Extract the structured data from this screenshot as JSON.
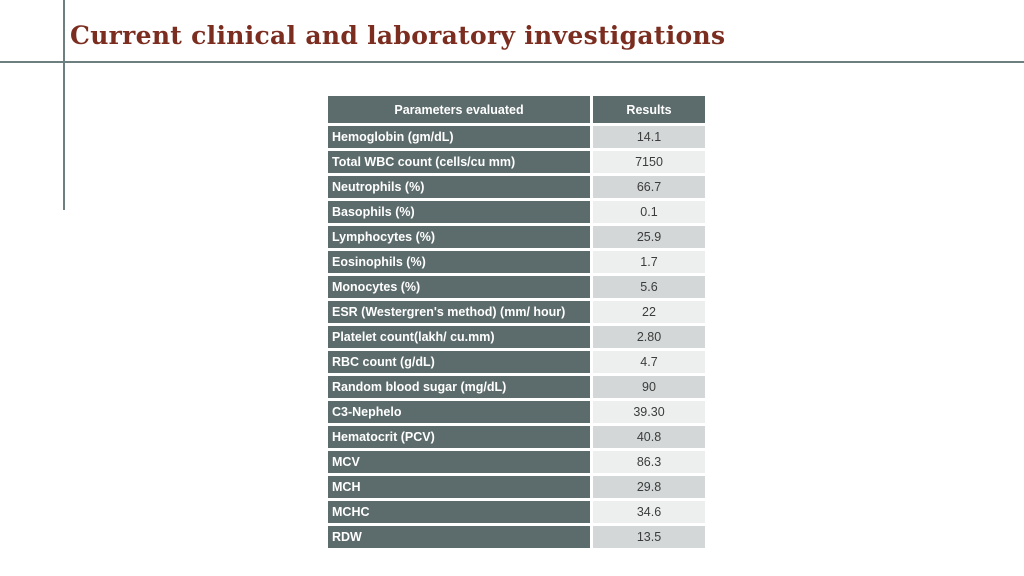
{
  "slide": {
    "title": "Current clinical and laboratory investigations"
  },
  "table": {
    "headers": {
      "parameter": "Parameters evaluated",
      "result": "Results"
    },
    "rows": [
      {
        "parameter": "Hemoglobin (gm/dL)",
        "result": "14.1"
      },
      {
        "parameter": "Total WBC count (cells/cu mm)",
        "result": "7150"
      },
      {
        "parameter": "Neutrophils (%)",
        "result": "66.7"
      },
      {
        "parameter": "Basophils (%)",
        "result": "0.1"
      },
      {
        "parameter": "Lymphocytes (%)",
        "result": "25.9"
      },
      {
        "parameter": "Eosinophils (%)",
        "result": "1.7"
      },
      {
        "parameter": "Monocytes (%)",
        "result": "5.6"
      },
      {
        "parameter": "ESR (Westergren's method) (mm/ hour)",
        "result": "22"
      },
      {
        "parameter": "Platelet count(lakh/ cu.mm)",
        "result": "2.80"
      },
      {
        "parameter": "RBC count (g/dL)",
        "result": "4.7"
      },
      {
        "parameter": "Random blood sugar (mg/dL)",
        "result": "90"
      },
      {
        "parameter": "C3-Nephelo",
        "result": "39.30"
      },
      {
        "parameter": "Hematocrit (PCV)",
        "result": "40.8"
      },
      {
        "parameter": "MCV",
        "result": "86.3"
      },
      {
        "parameter": "MCH",
        "result": "29.8"
      },
      {
        "parameter": "MCHC",
        "result": "34.6"
      },
      {
        "parameter": "RDW",
        "result": "13.5"
      }
    ]
  },
  "colors": {
    "title-color": "#7B2D20",
    "accent-line": "#6E7F7F",
    "cell-dark": "#5C6B6B",
    "row-dark": "#D3D7D7",
    "row-light": "#EDEFEF",
    "result-text": "#3C3C3C"
  }
}
